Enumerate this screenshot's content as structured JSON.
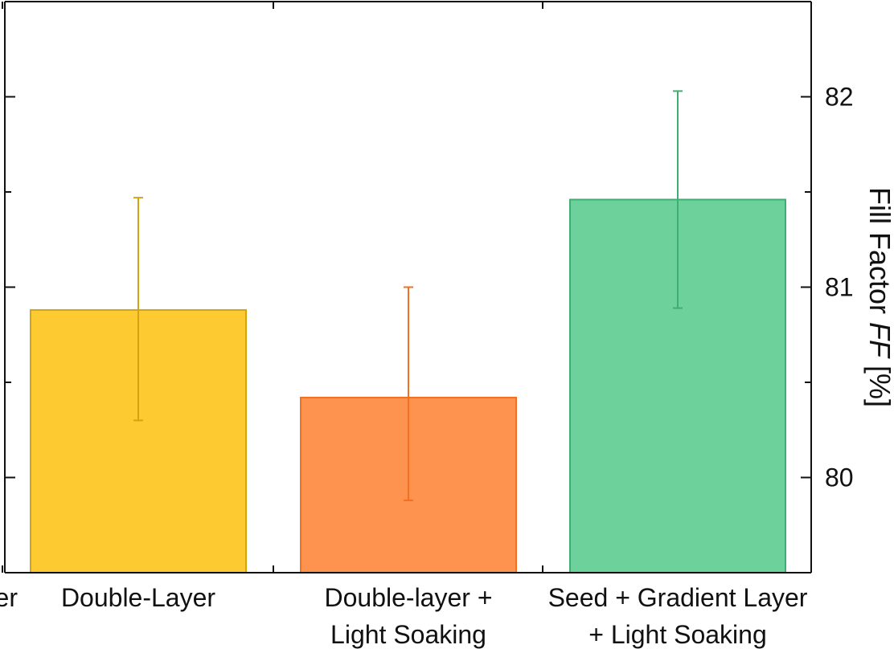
{
  "chart_data": {
    "type": "bar",
    "categories": [
      {
        "lines": [
          "er"
        ]
      },
      {
        "lines": [
          "Double-Layer"
        ]
      },
      {
        "lines": [
          "Double-layer +",
          "Light Soaking"
        ]
      },
      {
        "lines": [
          "Seed + Gradient Layer",
          "+ Light Soaking"
        ]
      }
    ],
    "values": [
      null,
      80.88,
      80.42,
      81.46
    ],
    "error_low": [
      null,
      80.3,
      79.88,
      80.89
    ],
    "error_high": [
      null,
      81.47,
      81.0,
      82.03
    ],
    "colors": [
      {
        "fill": "#ffffff",
        "stroke": "#ffffff"
      },
      {
        "fill": "#fdca31",
        "stroke": "#d4a410"
      },
      {
        "fill": "#fe9350",
        "stroke": "#f2701f"
      },
      {
        "fill": "#6dd19c",
        "stroke": "#3fae74"
      }
    ],
    "ylabel_parts": [
      "Fill Factor ",
      "FF",
      " [%]"
    ],
    "ylim": [
      79.5,
      82.5
    ],
    "yticks": [
      "80",
      "81",
      "82"
    ],
    "axis_side": "right",
    "grid": false,
    "legend": "none"
  }
}
